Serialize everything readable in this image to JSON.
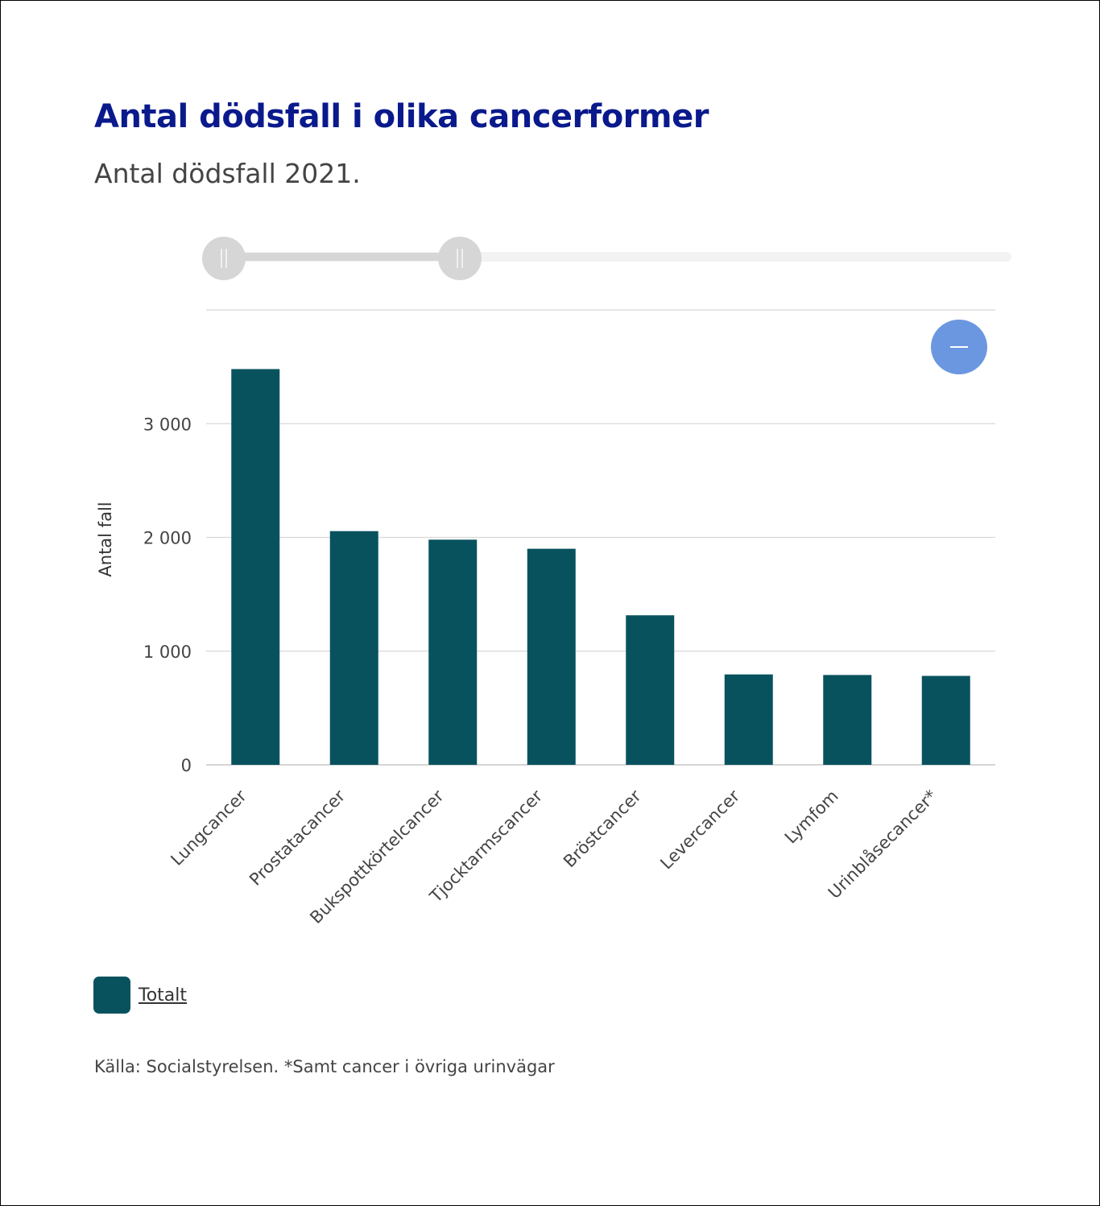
{
  "header": {
    "title": "Antal dödsfall i olika cancerformer",
    "subtitle": "Antal dödsfall 2021."
  },
  "controls": {
    "zoom_out_icon": "minus-icon",
    "range_slider": {
      "start_fraction": 0.0,
      "end_fraction": 0.3
    }
  },
  "colors": {
    "bar": "#08525e",
    "title": "#0a1a8c",
    "zoom_button": "#6b97e0",
    "grid": "#d8d8d8"
  },
  "chart_data": {
    "type": "bar",
    "title": "Antal dödsfall i olika cancerformer",
    "subtitle": "Antal dödsfall 2021.",
    "xlabel": "",
    "ylabel": "Antal fall",
    "ylim": [
      0,
      4000
    ],
    "yticks": [
      0,
      1000,
      2000,
      3000
    ],
    "ytick_labels": [
      "0",
      "1 000",
      "2 000",
      "3 000"
    ],
    "grid": true,
    "categories": [
      "Lungcancer",
      "Prostatacancer",
      "Bukspottkörtelcancer",
      "Tjocktarmscancer",
      "Bröstcancer",
      "Levercancer",
      "Lymfom",
      "Urinblåsecancer*"
    ],
    "series": [
      {
        "name": "Totalt",
        "values": [
          3480,
          2055,
          1980,
          1900,
          1315,
          795,
          790,
          782
        ]
      }
    ],
    "legend": {
      "placement": "bottom-left",
      "entries": [
        "Totalt"
      ]
    }
  },
  "footer": {
    "source": "Källa: Socialstyrelsen. *Samt cancer i övriga urinvägar"
  }
}
